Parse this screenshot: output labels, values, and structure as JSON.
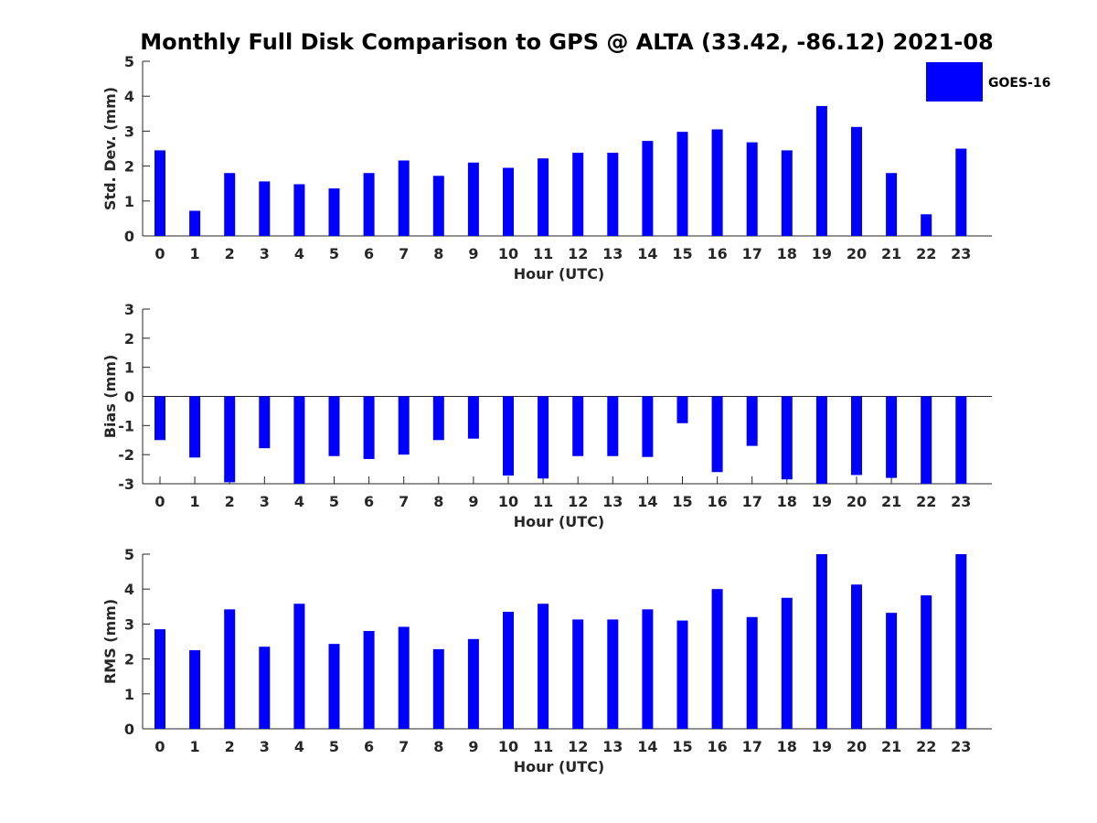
{
  "title": "Monthly Full Disk Comparison to GPS @ ALTA (33.42, -86.12) 2021-08",
  "legend": {
    "label": "GOES-16",
    "color": "#0000ff",
    "placement": "top-right"
  },
  "chart_data": [
    {
      "type": "bar",
      "ylabel": "Std. Dev. (mm)",
      "xlabel": "Hour (UTC)",
      "ylim": [
        0,
        5
      ],
      "yticks": [
        0,
        1,
        2,
        3,
        4,
        5
      ],
      "categories": [
        "0",
        "1",
        "2",
        "3",
        "4",
        "5",
        "6",
        "7",
        "8",
        "9",
        "10",
        "11",
        "12",
        "13",
        "14",
        "15",
        "16",
        "17",
        "18",
        "19",
        "20",
        "21",
        "22",
        "23"
      ],
      "series": [
        {
          "name": "GOES-16",
          "values": [
            2.45,
            0.72,
            1.8,
            1.56,
            1.48,
            1.36,
            1.8,
            2.16,
            1.72,
            2.1,
            1.95,
            2.22,
            2.38,
            2.38,
            2.72,
            2.98,
            3.05,
            2.68,
            2.45,
            3.72,
            3.12,
            1.8,
            0.62,
            2.5
          ]
        }
      ]
    },
    {
      "type": "bar",
      "ylabel": "Bias (mm)",
      "xlabel": "Hour (UTC)",
      "ylim": [
        -3,
        3
      ],
      "yticks": [
        -3,
        -2,
        -1,
        0,
        1,
        2,
        3
      ],
      "zero_line": true,
      "categories": [
        "0",
        "1",
        "2",
        "3",
        "4",
        "5",
        "6",
        "7",
        "8",
        "9",
        "10",
        "11",
        "12",
        "13",
        "14",
        "15",
        "16",
        "17",
        "18",
        "19",
        "20",
        "21",
        "22",
        "23"
      ],
      "series": [
        {
          "name": "GOES-16",
          "values": [
            -1.5,
            -2.1,
            -2.95,
            -1.78,
            -3.0,
            -2.05,
            -2.15,
            -2.0,
            -1.5,
            -1.45,
            -2.72,
            -2.82,
            -2.05,
            -2.05,
            -2.08,
            -0.92,
            -2.6,
            -1.7,
            -2.85,
            -3.0,
            -2.7,
            -2.8,
            -3.0,
            -3.0
          ]
        }
      ]
    },
    {
      "type": "bar",
      "ylabel": "RMS (mm)",
      "xlabel": "Hour (UTC)",
      "ylim": [
        0,
        5
      ],
      "yticks": [
        0,
        1,
        2,
        3,
        4,
        5
      ],
      "categories": [
        "0",
        "1",
        "2",
        "3",
        "4",
        "5",
        "6",
        "7",
        "8",
        "9",
        "10",
        "11",
        "12",
        "13",
        "14",
        "15",
        "16",
        "17",
        "18",
        "19",
        "20",
        "21",
        "22",
        "23"
      ],
      "series": [
        {
          "name": "GOES-16",
          "values": [
            2.85,
            2.25,
            3.42,
            2.35,
            3.58,
            2.43,
            2.8,
            2.92,
            2.28,
            2.57,
            3.35,
            3.58,
            3.13,
            3.13,
            3.42,
            3.1,
            4.0,
            3.2,
            3.75,
            5.0,
            4.13,
            3.32,
            3.82,
            5.0
          ]
        }
      ]
    }
  ]
}
